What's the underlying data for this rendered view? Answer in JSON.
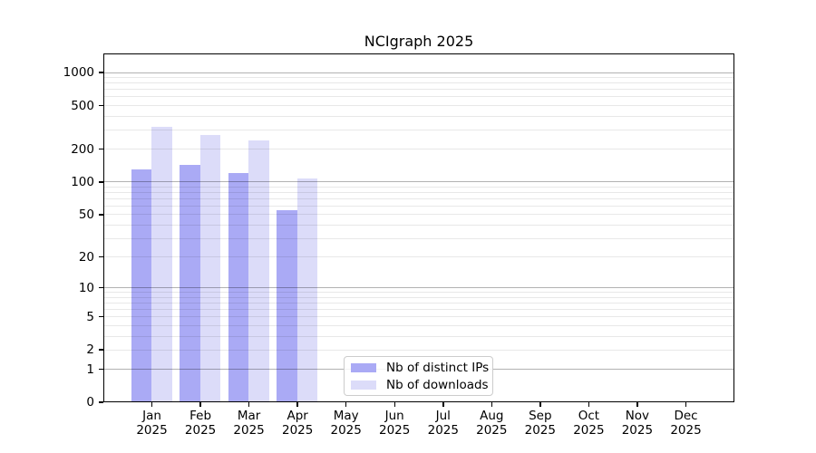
{
  "chart_data": {
    "type": "bar",
    "title": "NCIgraph 2025",
    "categories": [
      "Jan",
      "Feb",
      "Mar",
      "Apr",
      "May",
      "Jun",
      "Jul",
      "Aug",
      "Sep",
      "Oct",
      "Nov",
      "Dec"
    ],
    "year_label": "2025",
    "series": [
      {
        "name": "Nb of distinct IPs",
        "color": "#aaaaf5",
        "values": [
          130,
          145,
          120,
          55,
          null,
          null,
          null,
          null,
          null,
          null,
          null,
          null
        ]
      },
      {
        "name": "Nb of downloads",
        "color": "#dcdcf9",
        "values": [
          320,
          270,
          240,
          108,
          null,
          null,
          null,
          null,
          null,
          null,
          null,
          null
        ]
      }
    ],
    "yscale": "log1p",
    "yticks": [
      0,
      1,
      2,
      5,
      10,
      20,
      50,
      100,
      200,
      500,
      1000
    ],
    "ylim": [
      0,
      1490
    ],
    "grid": "on",
    "legend_position": "lower center",
    "colors": {
      "major_grid": "rgba(0,0,0,0.30)",
      "minor_grid": "rgba(0,0,0,0.09)",
      "spine": "#000000",
      "background": "#ffffff"
    }
  }
}
